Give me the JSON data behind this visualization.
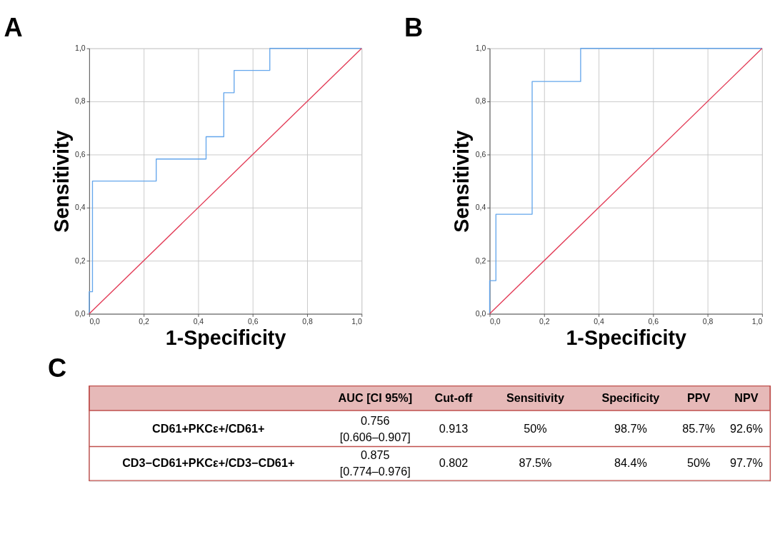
{
  "chart_data": [
    {
      "type": "step",
      "title": "A",
      "xlabel": "1-Specificity",
      "ylabel": "Sensitivity",
      "grid": true,
      "xlim": [
        0,
        1
      ],
      "ylim": [
        0,
        1
      ],
      "xticks": [
        {
          "value": 0,
          "label": "0,0"
        },
        {
          "value": 0.2,
          "label": "0,2"
        },
        {
          "value": 0.4,
          "label": "0,4"
        },
        {
          "value": 0.6,
          "label": "0,6"
        },
        {
          "value": 0.8,
          "label": "0,8"
        },
        {
          "value": 1,
          "label": "1,0"
        }
      ],
      "yticks": [
        {
          "value": 0,
          "label": "0,0"
        },
        {
          "value": 0.2,
          "label": "0,2"
        },
        {
          "value": 0.4,
          "label": "0,4"
        },
        {
          "value": 0.6,
          "label": "0,6"
        },
        {
          "value": 0.8,
          "label": "0,8"
        },
        {
          "value": 1,
          "label": "1,0"
        }
      ],
      "series": [
        {
          "type": "step",
          "color": "#64a6ec",
          "x": [
            0,
            0,
            0.012,
            0.246,
            0.429,
            0.494,
            0.532,
            0.663,
            1
          ],
          "values": [
            0,
            0.083,
            0.5,
            0.583,
            0.667,
            0.833,
            0.917,
            1,
            1
          ]
        },
        {
          "type": "line",
          "color": "#e23a55",
          "x": [
            0,
            1
          ],
          "values": [
            0,
            1
          ]
        }
      ]
    },
    {
      "type": "step",
      "title": "B",
      "xlabel": "1-Specificity",
      "ylabel": "Sensitivity",
      "grid": true,
      "xlim": [
        0,
        1
      ],
      "ylim": [
        0,
        1
      ],
      "xticks": [
        {
          "value": 0,
          "label": "0,0"
        },
        {
          "value": 0.2,
          "label": "0,2"
        },
        {
          "value": 0.4,
          "label": "0,4"
        },
        {
          "value": 0.6,
          "label": "0,6"
        },
        {
          "value": 0.8,
          "label": "0,8"
        },
        {
          "value": 1,
          "label": "1,0"
        }
      ],
      "yticks": [
        {
          "value": 0,
          "label": "0,0"
        },
        {
          "value": 0.2,
          "label": "0,2"
        },
        {
          "value": 0.4,
          "label": "0,4"
        },
        {
          "value": 0.6,
          "label": "0,6"
        },
        {
          "value": 0.8,
          "label": "0,8"
        },
        {
          "value": 1,
          "label": "1,0"
        }
      ],
      "series": [
        {
          "type": "step",
          "color": "#64a6ec",
          "x": [
            0,
            0,
            0.023,
            0.156,
            0.334,
            1
          ],
          "values": [
            0,
            0.125,
            0.375,
            0.875,
            1,
            1
          ]
        },
        {
          "type": "line",
          "color": "#e23a55",
          "x": [
            0,
            1
          ],
          "values": [
            0,
            1
          ]
        }
      ]
    },
    {
      "type": "other",
      "title": "C",
      "annotations": [
        "AUC [CI 95%]",
        "Cut-off",
        "Sensitivity",
        "Specificity",
        "PPV",
        "NPV",
        "CD61+PKCε+/CD61+",
        "0.756",
        "[0.606–0.907]",
        "0.913",
        "50%",
        "98.7%",
        "85.7%",
        "92.6%",
        "CD3−CD61+PKCε+/CD3−CD61+",
        "0.875",
        "[0.774–0.976]",
        "0.802",
        "87.5%",
        "84.4%",
        "50%",
        "97.7%"
      ]
    }
  ]
}
